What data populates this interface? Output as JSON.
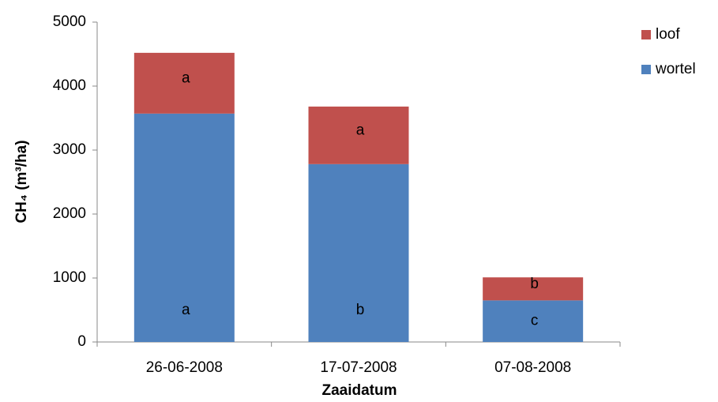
{
  "chart_data": {
    "type": "stacked_bar",
    "y_label": "CH₄ (m³/ha)",
    "x_label": "Zaaidatum",
    "categories": [
      "26-06-2008",
      "17-07-2008",
      "07-08-2008"
    ],
    "series": [
      {
        "name": "wortel",
        "color": "#4f81bd",
        "values": [
          3570,
          2780,
          650
        ],
        "annotations": [
          "a",
          "b",
          "c"
        ]
      },
      {
        "name": "loof",
        "color": "#c0504d",
        "values": [
          950,
          900,
          360
        ],
        "annotations": [
          "a",
          "a",
          "b"
        ]
      }
    ],
    "ylim": [
      0,
      5000
    ],
    "yticks": [
      0,
      1000,
      2000,
      3000,
      4000,
      5000
    ],
    "grid": false,
    "legend": "right"
  }
}
